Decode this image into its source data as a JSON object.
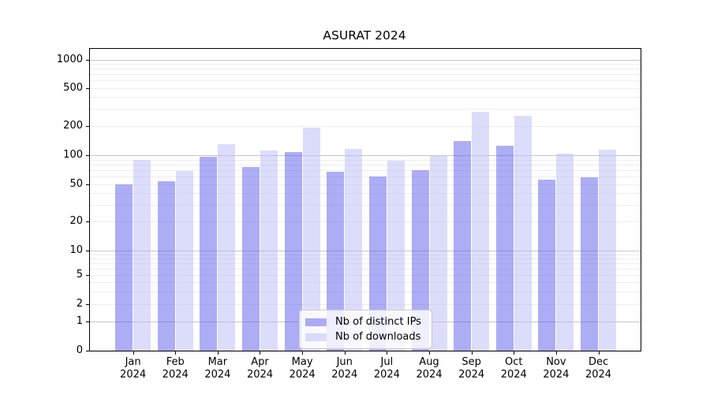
{
  "title": "ASURAT 2024",
  "chart_data": {
    "type": "bar",
    "title": "ASURAT 2024",
    "yscale": "symlog",
    "grid": true,
    "legend_position": "lower center",
    "y_ticks": [
      0,
      1,
      2,
      5,
      10,
      20,
      50,
      100,
      200,
      500,
      1000
    ],
    "ylim": [
      0,
      1300
    ],
    "categories": [
      {
        "month": "Jan",
        "year": "2024"
      },
      {
        "month": "Feb",
        "year": "2024"
      },
      {
        "month": "Mar",
        "year": "2024"
      },
      {
        "month": "Apr",
        "year": "2024"
      },
      {
        "month": "May",
        "year": "2024"
      },
      {
        "month": "Jun",
        "year": "2024"
      },
      {
        "month": "Jul",
        "year": "2024"
      },
      {
        "month": "Aug",
        "year": "2024"
      },
      {
        "month": "Sep",
        "year": "2024"
      },
      {
        "month": "Oct",
        "year": "2024"
      },
      {
        "month": "Nov",
        "year": "2024"
      },
      {
        "month": "Dec",
        "year": "2024"
      }
    ],
    "series": [
      {
        "name": "Nb of distinct IPs",
        "color": "rgba(97,97,238,0.52)",
        "values": [
          50,
          54,
          97,
          75,
          107,
          67,
          60,
          70,
          140,
          126,
          56,
          59
        ]
      },
      {
        "name": "Nb of downloads",
        "color": "rgba(185,185,247,0.5)",
        "values": [
          90,
          69,
          130,
          112,
          191,
          116,
          88,
          99,
          280,
          253,
          104,
          113
        ]
      }
    ]
  }
}
